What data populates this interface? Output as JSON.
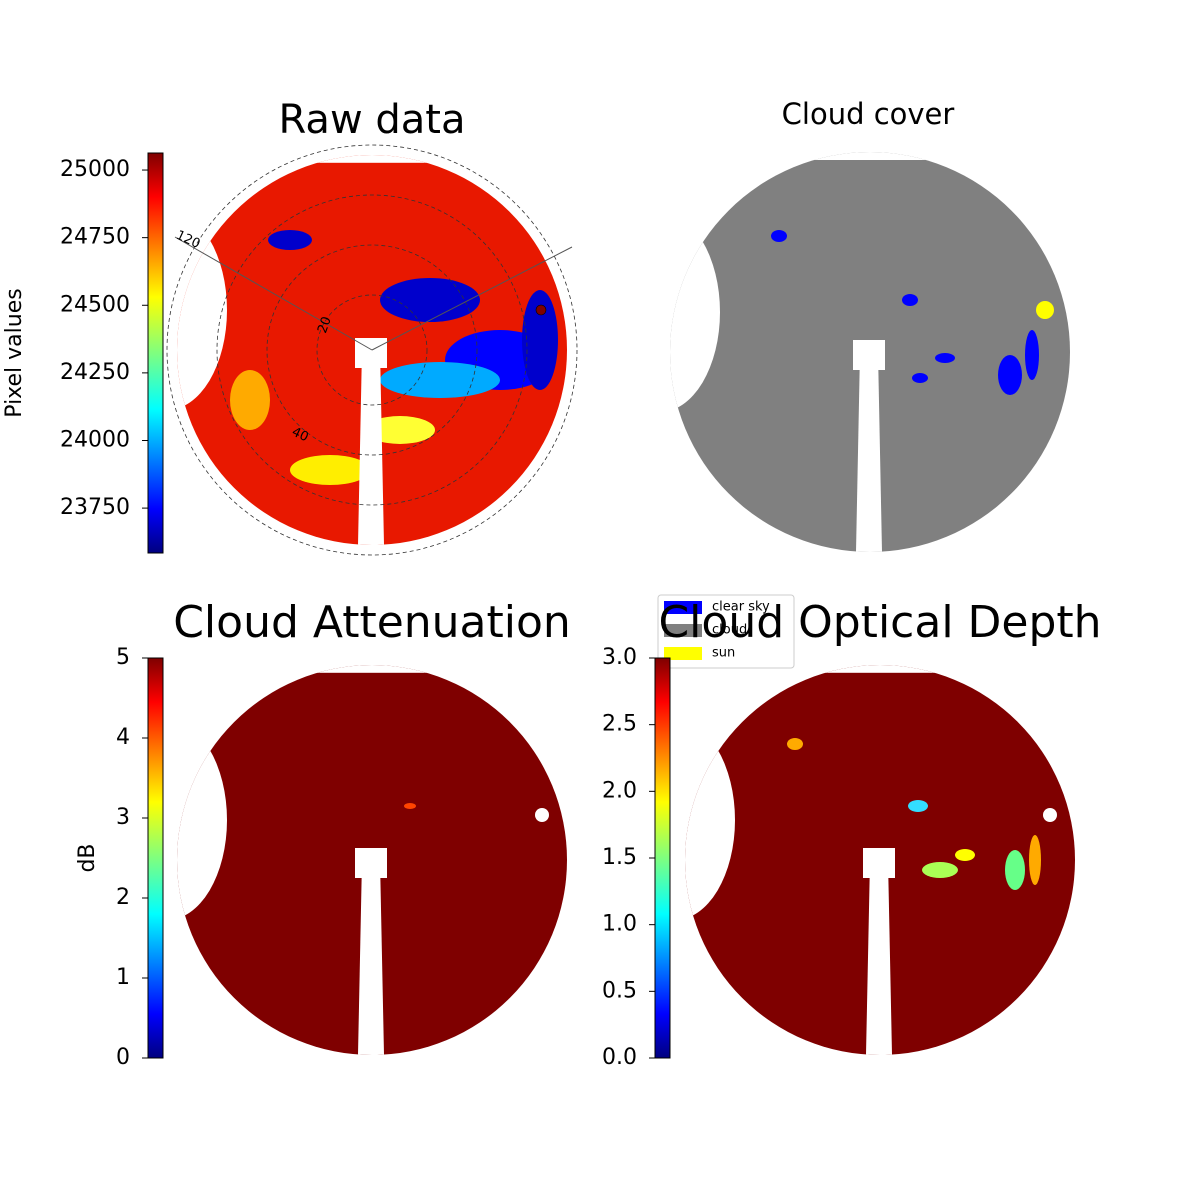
{
  "chart_data": [
    {
      "type": "image",
      "title": "Raw data",
      "polar_labels": [
        "120",
        "20",
        "40"
      ],
      "colorbar": {
        "label": "Pixel values",
        "colormap": "jet",
        "lim": [
          23584,
          25063
        ],
        "ticks": [
          23750,
          24000,
          24250,
          24500,
          24750,
          25000
        ]
      }
    },
    {
      "type": "image",
      "title": "Cloud cover",
      "legend": [
        {
          "label": "clear sky",
          "color": "#0000ff"
        },
        {
          "label": "cloud",
          "color": "#808080"
        },
        {
          "label": "sun",
          "color": "#ffff00"
        }
      ]
    },
    {
      "type": "image",
      "title": "Cloud Attenuation",
      "colorbar": {
        "label": "dB",
        "colormap": "jet",
        "lim": [
          0,
          5
        ],
        "ticks": [
          0,
          1,
          2,
          3,
          4,
          5
        ]
      }
    },
    {
      "type": "image",
      "title": "Cloud Optical Depth",
      "colorbar": {
        "colormap": "jet",
        "lim": [
          0,
          3
        ],
        "ticks": [
          {
            "value": 0,
            "label": "0.0"
          },
          0.5,
          {
            "value": 1,
            "label": "1.0"
          },
          1.5,
          {
            "value": 2,
            "label": "2.0"
          },
          2.5,
          {
            "value": 3,
            "label": "3.0"
          }
        ]
      }
    }
  ]
}
